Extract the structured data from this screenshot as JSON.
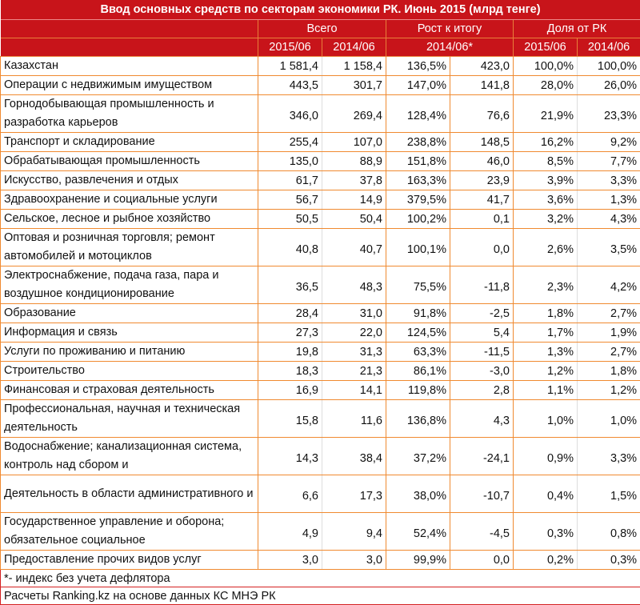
{
  "title": "Ввод основных средств по секторам экономики РК. Июнь 2015 (млрд тенге)",
  "groups": {
    "total": "Всего",
    "growth": "Рост к итогу",
    "share": "Доля от РК"
  },
  "sub": {
    "c1": "2015/06",
    "c2": "2014/06",
    "c3": "2014/06*",
    "c5": "2015/06",
    "c6": "2014/06"
  },
  "rows": [
    {
      "name": "Казахстан",
      "v": [
        "1 581,4",
        "1 158,4",
        "136,5%",
        "423,0",
        "100,0%",
        "100,0%"
      ],
      "double": false
    },
    {
      "name": "Операции с недвижимым имуществом",
      "v": [
        "443,5",
        "301,7",
        "147,0%",
        "141,8",
        "28,0%",
        "26,0%"
      ],
      "double": false
    },
    {
      "name": "Горнодобывающая промышленность и разработка карьеров",
      "v": [
        "346,0",
        "269,4",
        "128,4%",
        "76,6",
        "21,9%",
        "23,3%"
      ],
      "double": true
    },
    {
      "name": "Транспорт и складирование",
      "v": [
        "255,4",
        "107,0",
        "238,8%",
        "148,5",
        "16,2%",
        "9,2%"
      ],
      "double": false
    },
    {
      "name": "Обрабатывающая промышленность",
      "v": [
        "135,0",
        "88,9",
        "151,8%",
        "46,0",
        "8,5%",
        "7,7%"
      ],
      "double": false
    },
    {
      "name": "Искусство, развлечения и отдых",
      "v": [
        "61,7",
        "37,8",
        "163,3%",
        "23,9",
        "3,9%",
        "3,3%"
      ],
      "double": false
    },
    {
      "name": "Здравоохранение и социальные услуги",
      "v": [
        "56,7",
        "14,9",
        "379,5%",
        "41,7",
        "3,6%",
        "1,3%"
      ],
      "double": false
    },
    {
      "name": "Сельское, лесное и рыбное хозяйство",
      "v": [
        "50,5",
        "50,4",
        "100,2%",
        "0,1",
        "3,2%",
        "4,3%"
      ],
      "double": false
    },
    {
      "name": "Оптовая и розничная торговля; ремонт автомобилей и мотоциклов",
      "v": [
        "40,8",
        "40,7",
        "100,1%",
        "0,0",
        "2,6%",
        "3,5%"
      ],
      "double": true
    },
    {
      "name": "Электроснабжение, подача газа, пара и воздушное  кондиционирование",
      "v": [
        "36,5",
        "48,3",
        "75,5%",
        "-11,8",
        "2,3%",
        "4,2%"
      ],
      "double": true
    },
    {
      "name": "Образование",
      "v": [
        "28,4",
        "31,0",
        "91,8%",
        "-2,5",
        "1,8%",
        "2,7%"
      ],
      "double": false
    },
    {
      "name": "Информация и связь",
      "v": [
        "27,3",
        "22,0",
        "124,5%",
        "5,4",
        "1,7%",
        "1,9%"
      ],
      "double": false
    },
    {
      "name": "Услуги по проживанию и питанию",
      "v": [
        "19,8",
        "31,3",
        "63,3%",
        "-11,5",
        "1,3%",
        "2,7%"
      ],
      "double": false
    },
    {
      "name": "Строительство",
      "v": [
        "18,3",
        "21,3",
        "86,1%",
        "-3,0",
        "1,2%",
        "1,8%"
      ],
      "double": false
    },
    {
      "name": "Финансовая и страховая деятельность",
      "v": [
        "16,9",
        "14,1",
        "119,8%",
        "2,8",
        "1,1%",
        "1,2%"
      ],
      "double": false
    },
    {
      "name": "Профессиональная, научная и техническая деятельность",
      "v": [
        "15,8",
        "11,6",
        "136,8%",
        "4,3",
        "1,0%",
        "1,0%"
      ],
      "double": true
    },
    {
      "name": "Водоснабжение; канализационная система, контроль над сбором и",
      "v": [
        "14,3",
        "38,4",
        "37,2%",
        "-24,1",
        "0,9%",
        "3,3%"
      ],
      "double": true
    },
    {
      "name": "Деятельность в области административного и",
      "v": [
        "6,6",
        "17,3",
        "38,0%",
        "-10,7",
        "0,4%",
        "1,5%"
      ],
      "double": true
    },
    {
      "name": "Государственное управление и оборона; обязательное  социальное",
      "v": [
        "4,9",
        "9,4",
        "52,4%",
        "-4,5",
        "0,3%",
        "0,8%"
      ],
      "double": true
    },
    {
      "name": "Предоставление прочих видов услуг",
      "v": [
        "3,0",
        "3,0",
        "99,9%",
        "0,0",
        "0,2%",
        "0,3%"
      ],
      "double": false
    }
  ],
  "footnote": "*- индекс без учета дефлятора",
  "source": "Расчеты Ranking.kz на основе данных КС МНЭ РК"
}
